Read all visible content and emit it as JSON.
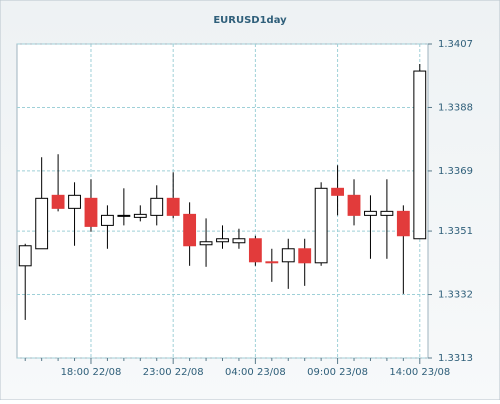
{
  "chart_data": {
    "type": "candlestick",
    "title": "EURUSD1day",
    "categories": [
      null,
      null,
      null,
      null,
      "18:00 22/08",
      null,
      null,
      null,
      null,
      "23:00 22/08",
      null,
      null,
      null,
      null,
      "04:00 23/08",
      null,
      null,
      null,
      null,
      "09:00 23/08",
      null,
      null,
      null,
      null,
      "14:00 23/08"
    ],
    "open": [
      1.33406,
      1.33457,
      1.33617,
      1.33578,
      1.33608,
      1.33527,
      1.33554,
      1.33551,
      1.33557,
      1.33608,
      1.3356,
      1.33469,
      1.33478,
      1.33475,
      1.33487,
      1.33418,
      1.33418,
      1.33457,
      1.33415,
      1.33638,
      1.33617,
      1.33557,
      1.33557,
      1.33569,
      1.33487
    ],
    "high": [
      1.33472,
      1.33731,
      1.3374,
      1.33656,
      1.33665,
      1.33587,
      1.33638,
      1.33587,
      1.33647,
      1.33686,
      1.33596,
      1.33548,
      1.33527,
      1.33517,
      1.33496,
      1.33457,
      1.33487,
      1.33487,
      1.33656,
      1.33707,
      1.33665,
      1.33617,
      1.33665,
      1.33587,
      1.3401
    ],
    "low": [
      1.33244,
      1.33457,
      1.33569,
      1.33466,
      1.33508,
      1.33457,
      1.33527,
      1.33539,
      1.33527,
      1.33548,
      1.33406,
      1.33403,
      1.33457,
      1.33457,
      1.33406,
      1.33358,
      1.33337,
      1.33346,
      1.33406,
      1.33557,
      1.33527,
      1.33427,
      1.33427,
      1.33322,
      1.33487
    ],
    "close": [
      1.33466,
      1.33608,
      1.33578,
      1.33617,
      1.33524,
      1.33557,
      1.33557,
      1.3356,
      1.33608,
      1.33557,
      1.33466,
      1.33478,
      1.33487,
      1.33487,
      1.33418,
      1.33415,
      1.33457,
      1.33415,
      1.33638,
      1.33617,
      1.33557,
      1.33569,
      1.33569,
      1.33496,
      1.33989
    ],
    "up_color": "#ffffff",
    "down_color": "#e23b3b",
    "ylim": [
      1.3313,
      1.3407
    ],
    "yticks": [
      1.3313,
      1.3332,
      1.3351,
      1.3369,
      1.3388,
      1.3407
    ],
    "grid": true
  }
}
